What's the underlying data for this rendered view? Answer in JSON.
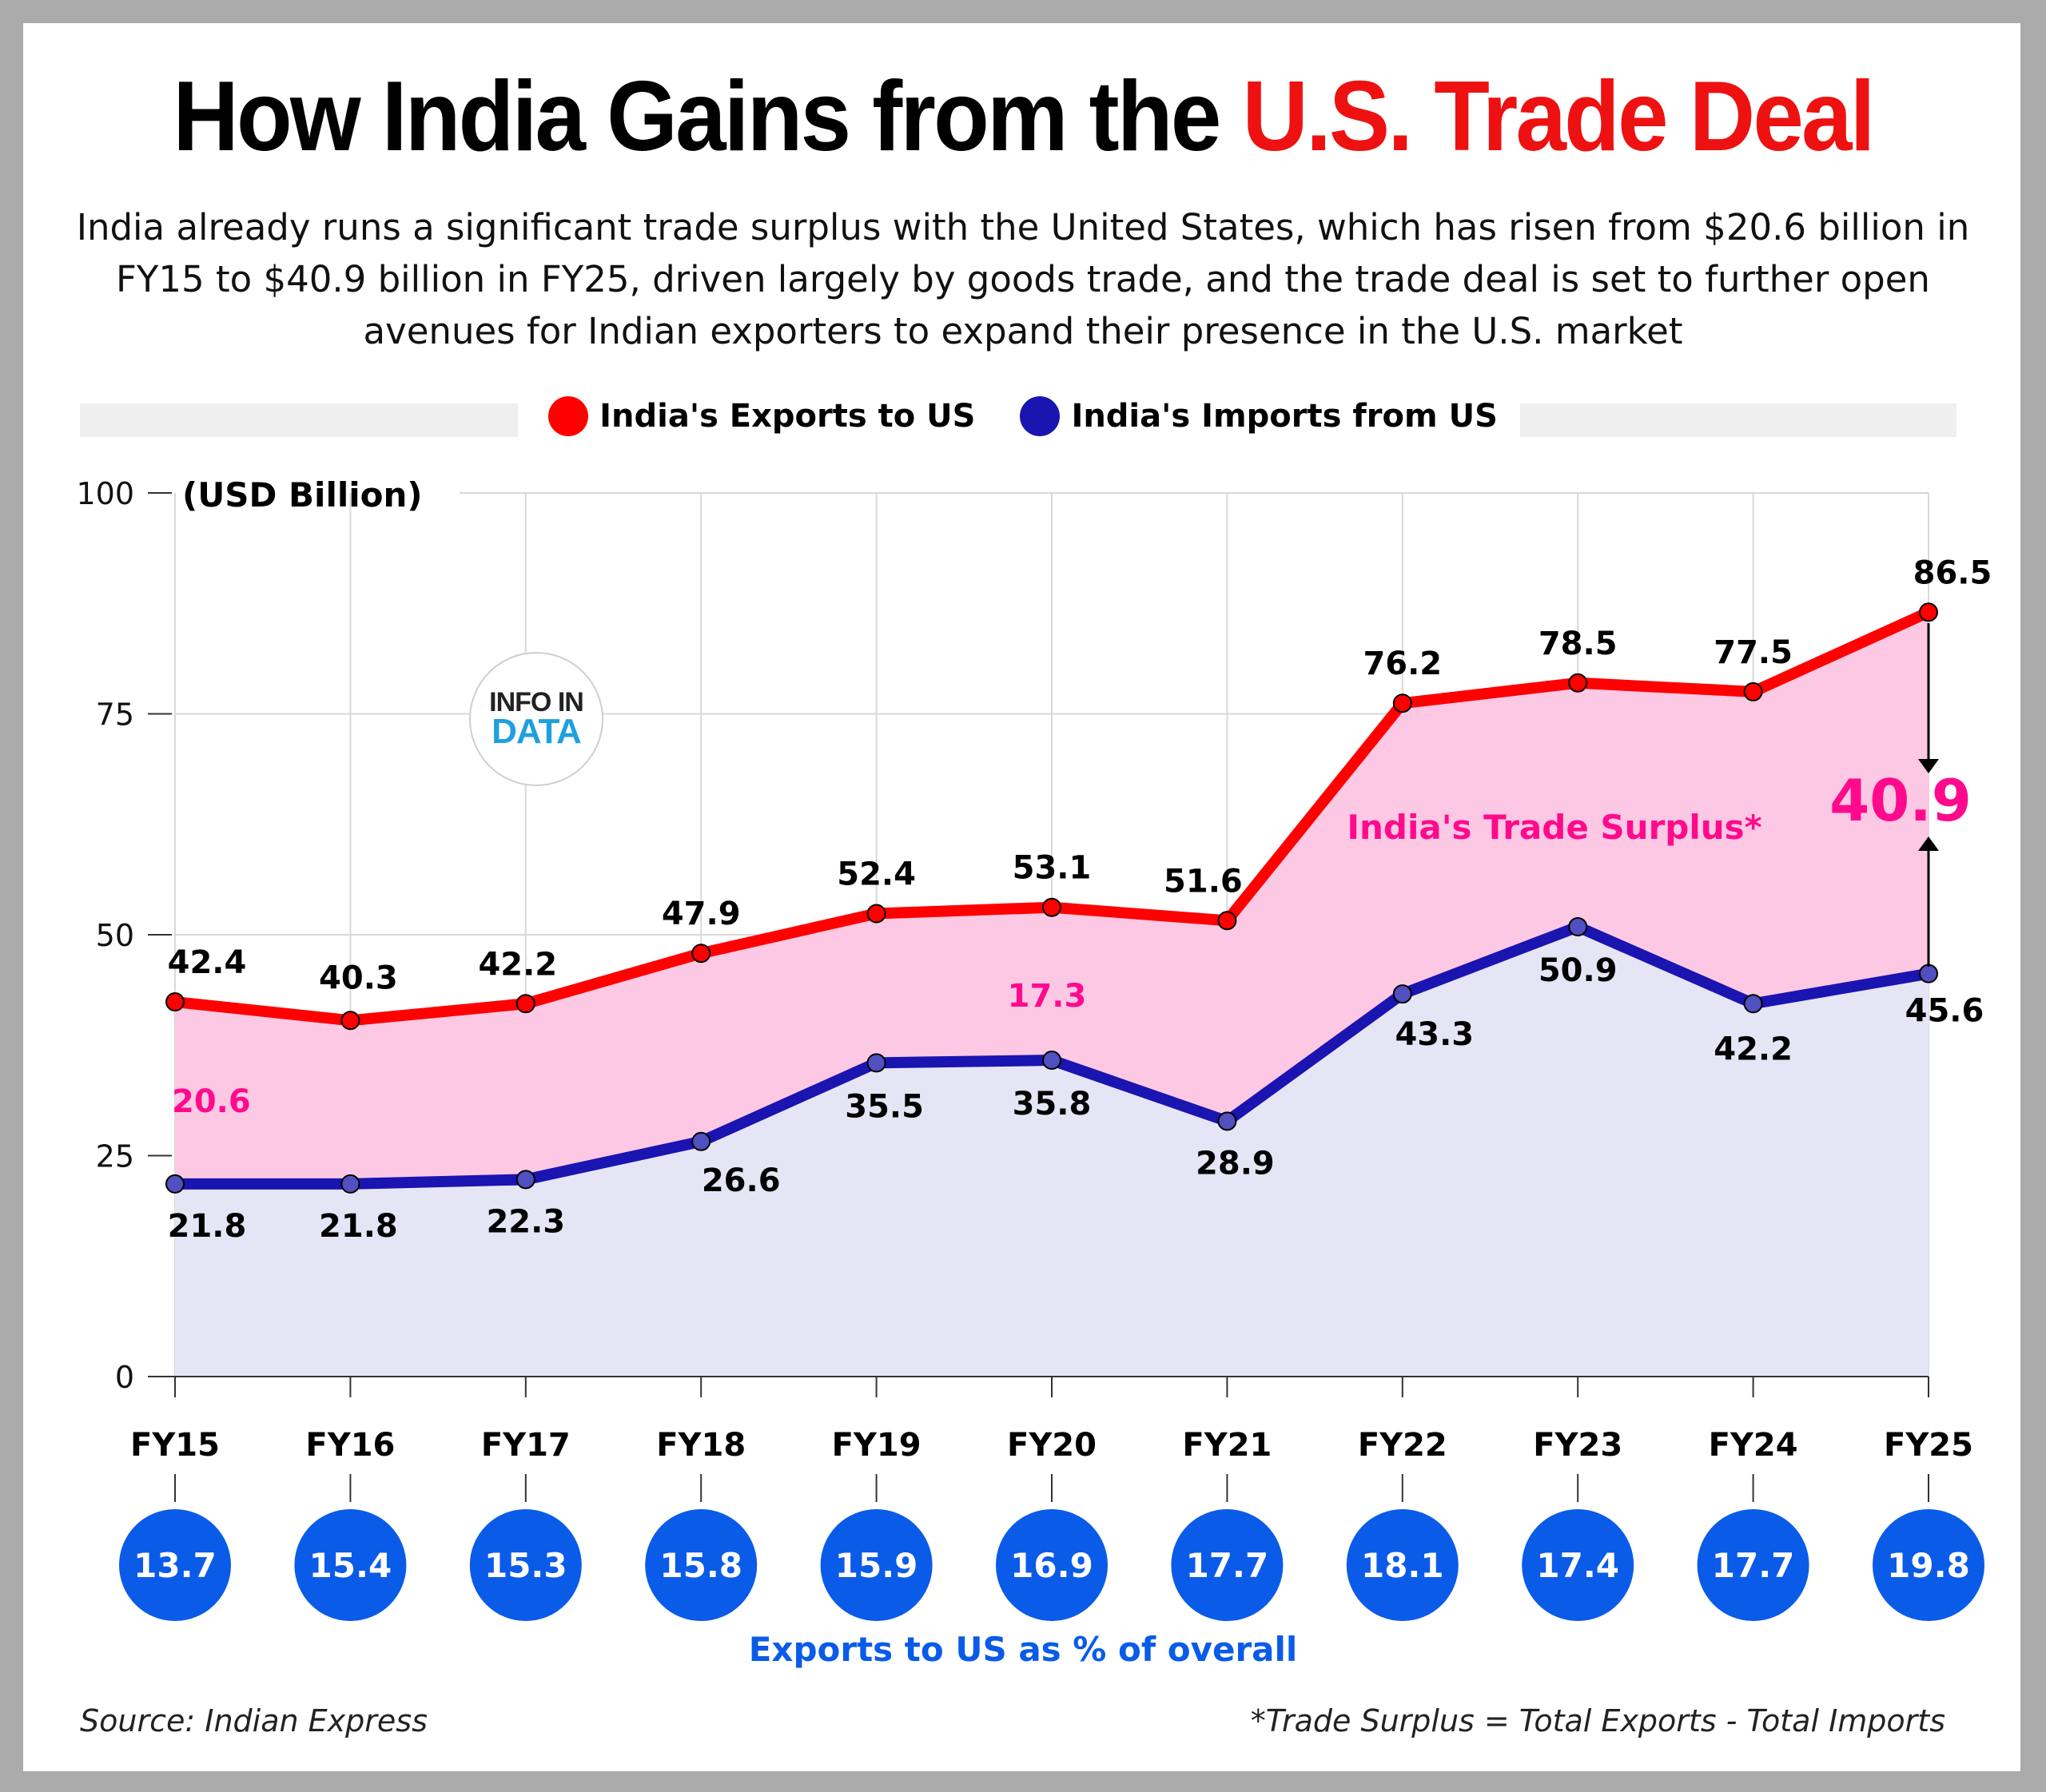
{
  "title": {
    "main": "How India Gains from the ",
    "accent": "U.S. Trade Deal"
  },
  "subtitle": "India already runs a significant trade surplus with the United States, which has risen from $20.6 billion in FY15 to $40.9 billion in FY25, driven largely by goods trade, and the trade deal is set to further open avenues for Indian exporters to expand their presence in the U.S. market",
  "logo": {
    "line1": "INFO IN",
    "line2": "DATA"
  },
  "colors": {
    "exports": "#ff0000",
    "imports": "#1a14b0",
    "import_marker": "#5050c0",
    "surplus_fill": "#fcc8e4",
    "imports_fill": "#e6e5f5",
    "surplus_text": "#ff0a8c",
    "pct_circle": "#0a5be8",
    "title_accent": "#ee1111"
  },
  "chart_data": {
    "type": "line",
    "title": "How India Gains from the U.S. Trade Deal",
    "ylabel": "(USD Billion)",
    "xlabel": "",
    "ylim": [
      0,
      100
    ],
    "yticks": [
      0,
      25,
      50,
      75,
      100
    ],
    "grid": true,
    "legend_position": "top-center",
    "categories": [
      "FY15",
      "FY16",
      "FY17",
      "FY18",
      "FY19",
      "FY20",
      "FY21",
      "FY22",
      "FY23",
      "FY24",
      "FY25"
    ],
    "series": [
      {
        "name": "India's Exports to US",
        "values": [
          42.4,
          40.3,
          42.2,
          47.9,
          52.4,
          53.1,
          51.6,
          76.2,
          78.5,
          77.5,
          86.5
        ]
      },
      {
        "name": "India's Imports from US",
        "values": [
          21.8,
          21.8,
          22.3,
          26.6,
          35.5,
          35.8,
          28.9,
          43.3,
          50.9,
          42.2,
          45.6
        ]
      }
    ],
    "annotations": [
      {
        "text": "20.6",
        "category": "FY15",
        "meaning": "trade surplus"
      },
      {
        "text": "17.3",
        "category": "FY20",
        "meaning": "trade surplus"
      },
      {
        "text": "40.9",
        "category": "FY25",
        "meaning": "trade surplus"
      },
      {
        "text": "India's Trade Surplus*",
        "meaning": "shaded area label"
      }
    ],
    "exports_pct_of_overall": {
      "label": "Exports to US as % of overall",
      "values": [
        13.7,
        15.4,
        15.3,
        15.8,
        15.9,
        16.9,
        17.7,
        18.1,
        17.4,
        17.7,
        19.8
      ]
    }
  },
  "footer": {
    "source": "Source: Indian Express",
    "note": "*Trade Surplus = Total Exports - Total Imports"
  }
}
